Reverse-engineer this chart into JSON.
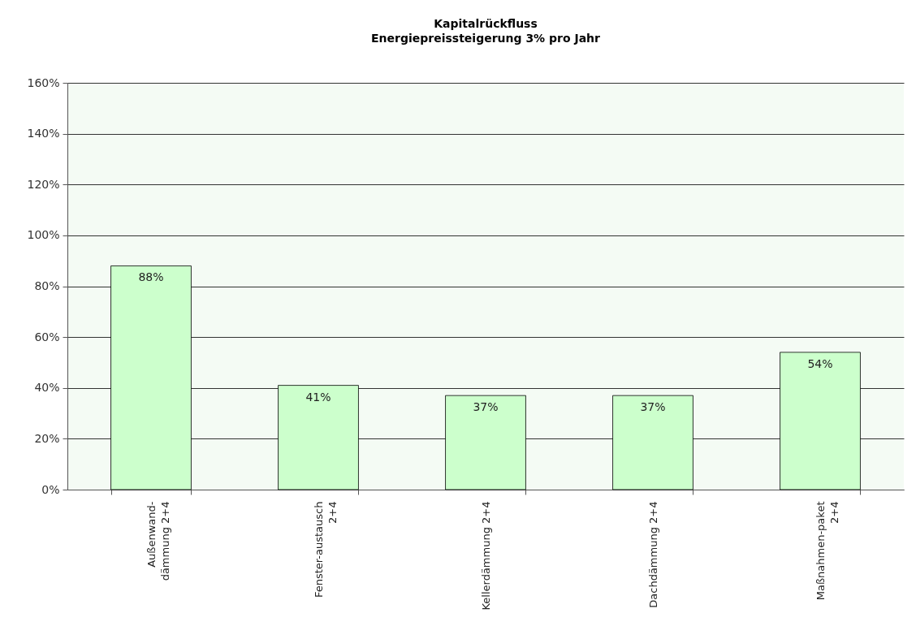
{
  "chart_data": {
    "type": "bar",
    "title": "Kapitalrückfluss",
    "subtitle": "Energiepreissteigerung 3% pro Jahr",
    "categories": [
      "Außenwand-\ndämmung 2+4",
      "Fenster-austausch\n2+4",
      "Kellerdämmung 2+4",
      "Dachdämmung 2+4",
      "Maßnahmen-paket\n2+4"
    ],
    "values": [
      88,
      41,
      37,
      37,
      54
    ],
    "value_labels": [
      "88%",
      "41%",
      "37%",
      "37%",
      "54%"
    ],
    "color": "#ccffcc",
    "ylim": [
      0,
      160
    ],
    "yticks": [
      {
        "value": 0,
        "label": "0%"
      },
      {
        "value": 20,
        "label": "20%"
      },
      {
        "value": 40,
        "label": "40%"
      },
      {
        "value": 60,
        "label": "60%"
      },
      {
        "value": 80,
        "label": "80%"
      },
      {
        "value": 100,
        "label": "100%"
      },
      {
        "value": 120,
        "label": "120%"
      },
      {
        "value": 140,
        "label": "140%"
      },
      {
        "value": 160,
        "label": "160%"
      }
    ],
    "grid": "y"
  }
}
